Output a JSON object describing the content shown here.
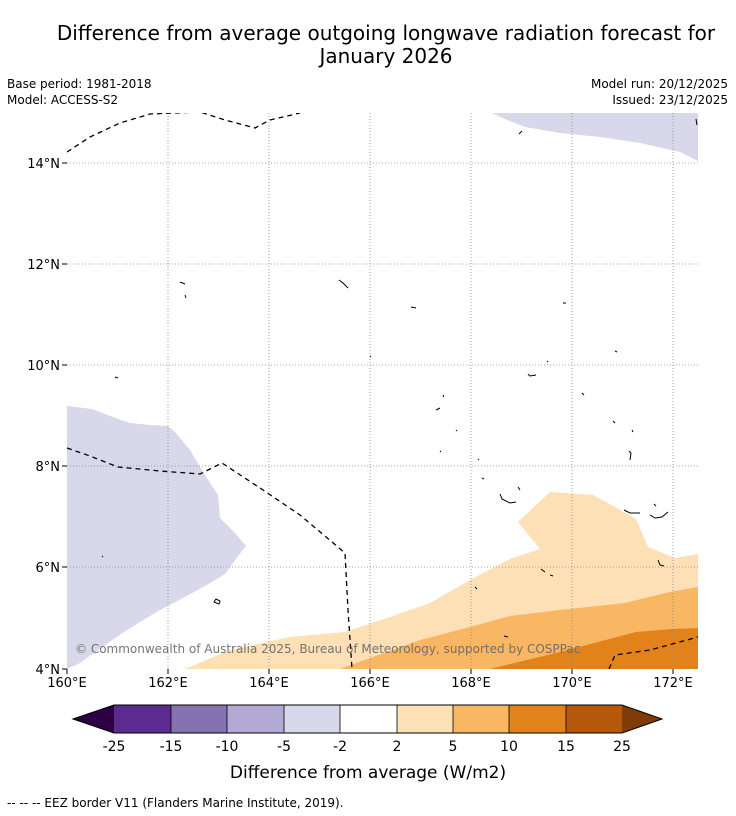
{
  "title_line1": "Difference from average outgoing longwave radiation forecast for",
  "title_line2": "January 2026",
  "meta_left": [
    "Base period: 1981-2018",
    "Model: ACCESS-S2"
  ],
  "meta_right": [
    "Model run: 20/12/2025",
    "Issued: 23/12/2025"
  ],
  "lat_labels": [
    "14°N",
    "12°N",
    "10°N",
    "8°N",
    "6°N",
    "4°N"
  ],
  "lon_labels": [
    "160°E",
    "162°E",
    "164°E",
    "166°E",
    "168°E",
    "170°E",
    "172°E"
  ],
  "copyright": "© Commonwealth of Australia 2025, Bureau of Meteorology, supported by COSPPac",
  "colorbar": {
    "ticks": [
      "-25",
      "-15",
      "-10",
      "-5",
      "-2",
      "2",
      "5",
      "10",
      "15",
      "25"
    ],
    "label": "Difference from average (W/m2)",
    "colors": {
      "extend_low": "#2d0046",
      "lt_m25_m15": "#5d2a90",
      "m15_m10": "#8473b0",
      "m10_m5": "#b2aad4",
      "m5_m2": "#d8d8ea",
      "m2_2": "#ffffff",
      "c2_5": "#fde0b6",
      "c5_10": "#f9b663",
      "c10_15": "#e2821b",
      "c15_25": "#b5580a",
      "extend_high": "#7f3b08"
    }
  },
  "footer": "-- -- -- EEZ border V11 (Flanders Marine Institute, 2019)."
}
